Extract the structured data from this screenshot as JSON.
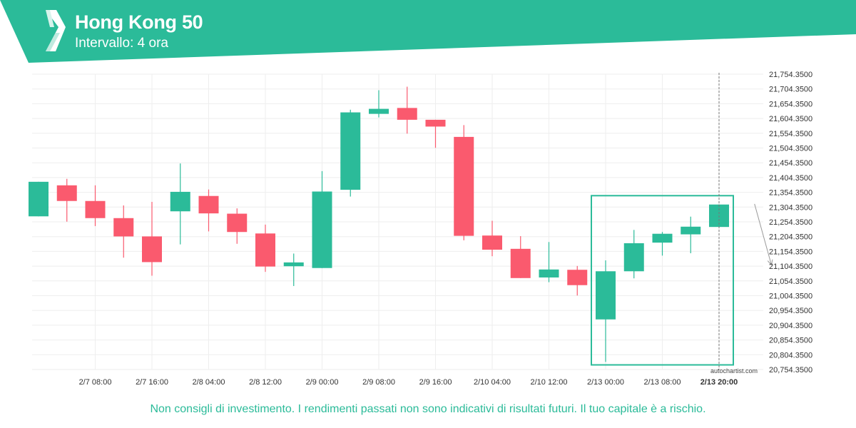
{
  "header": {
    "title": "Hong Kong 50",
    "subtitle": "Intervallo: 4 ora"
  },
  "watermark": "autochartist.com",
  "disclaimer": "Non consigli di investimento. I rendimenti passati non sono indicativi di risultati futuri. Il tuo capitale è a rischio.",
  "colors": {
    "brand": "#2bbb99",
    "up": "#2bbb99",
    "down": "#fa5a6e",
    "grid": "#eeeeee",
    "axis_text": "#333333"
  },
  "icons": {
    "logo": "autochartist-logo-icon",
    "trend": "forecast-arrow-icon"
  },
  "chart_data": {
    "type": "candlestick",
    "title": "Hong Kong 50",
    "ylim": [
      20754.35,
      21754.35
    ],
    "y_ticks": [
      21754.35,
      21704.35,
      21654.35,
      21604.35,
      21554.35,
      21504.35,
      21454.35,
      21404.35,
      21354.35,
      21304.35,
      21254.35,
      21204.35,
      21154.35,
      21104.35,
      21054.35,
      21004.35,
      20954.35,
      20904.35,
      20854.35,
      20804.35,
      20754.35
    ],
    "y_tick_labels": [
      "21,754.3500",
      "21,704.3500",
      "21,654.3500",
      "21,604.3500",
      "21,554.3500",
      "21,504.3500",
      "21,454.3500",
      "21,404.3500",
      "21,354.3500",
      "21,304.3500",
      "21,254.3500",
      "21,204.3500",
      "21,154.3500",
      "21,104.3500",
      "21,054.3500",
      "21,004.3500",
      "20,954.3500",
      "20,904.3500",
      "20,854.3500",
      "20,804.3500",
      "20,754.3500"
    ],
    "x_ticks": [
      {
        "label": "2/7 08:00",
        "index": 2
      },
      {
        "label": "2/7 16:00",
        "index": 4
      },
      {
        "label": "2/8 04:00",
        "index": 6
      },
      {
        "label": "2/8 12:00",
        "index": 8
      },
      {
        "label": "2/9 00:00",
        "index": 10
      },
      {
        "label": "2/9 08:00",
        "index": 12
      },
      {
        "label": "2/9 16:00",
        "index": 14
      },
      {
        "label": "2/10 04:00",
        "index": 16
      },
      {
        "label": "2/10 12:00",
        "index": 18
      },
      {
        "label": "2/13 00:00",
        "index": 20
      },
      {
        "label": "2/13 08:00",
        "index": 22
      },
      {
        "label": "2/13 20:00",
        "index": 24,
        "bold": true
      }
    ],
    "candles": [
      {
        "o": 21273,
        "h": 21390,
        "l": 21273,
        "c": 21390
      },
      {
        "o": 21378,
        "h": 21400,
        "l": 21255,
        "c": 21325
      },
      {
        "o": 21325,
        "h": 21378,
        "l": 21240,
        "c": 21267
      },
      {
        "o": 21267,
        "h": 21310,
        "l": 21133,
        "c": 21205
      },
      {
        "o": 21205,
        "h": 21322,
        "l": 21072,
        "c": 21118
      },
      {
        "o": 21290,
        "h": 21452,
        "l": 21178,
        "c": 21356
      },
      {
        "o": 21342,
        "h": 21364,
        "l": 21222,
        "c": 21283
      },
      {
        "o": 21282,
        "h": 21300,
        "l": 21180,
        "c": 21220
      },
      {
        "o": 21215,
        "h": 21245,
        "l": 21085,
        "c": 21103
      },
      {
        "o": 21104,
        "h": 21147,
        "l": 21037,
        "c": 21117
      },
      {
        "o": 21098,
        "h": 21426,
        "l": 21098,
        "c": 21357
      },
      {
        "o": 21363,
        "h": 21634,
        "l": 21340,
        "c": 21625
      },
      {
        "o": 21620,
        "h": 21700,
        "l": 21608,
        "c": 21637
      },
      {
        "o": 21640,
        "h": 21712,
        "l": 21553,
        "c": 21600
      },
      {
        "o": 21600,
        "h": 21600,
        "l": 21505,
        "c": 21577
      },
      {
        "o": 21542,
        "h": 21582,
        "l": 21192,
        "c": 21207
      },
      {
        "o": 21208,
        "h": 21258,
        "l": 21138,
        "c": 21160
      },
      {
        "o": 21163,
        "h": 21206,
        "l": 21064,
        "c": 21064
      },
      {
        "o": 21066,
        "h": 21186,
        "l": 21050,
        "c": 21093
      },
      {
        "o": 21092,
        "h": 21105,
        "l": 21005,
        "c": 21040
      },
      {
        "o": 20924,
        "h": 21124,
        "l": 20780,
        "c": 21087
      },
      {
        "o": 21087,
        "h": 21227,
        "l": 21063,
        "c": 21182
      },
      {
        "o": 21184,
        "h": 21220,
        "l": 21140,
        "c": 21214
      },
      {
        "o": 21212,
        "h": 21272,
        "l": 21148,
        "c": 21238
      },
      {
        "o": 21237,
        "h": 21313,
        "l": 21237,
        "c": 21313
      }
    ],
    "pattern_box": {
      "start_index": 20,
      "end_index": 24,
      "ymin": 20770,
      "ymax": 21343
    },
    "vertical_line_index": 24,
    "forecast_arrow": {
      "from_index": 25,
      "from_y": 21315,
      "to_index": 26,
      "to_y": 21108
    }
  }
}
